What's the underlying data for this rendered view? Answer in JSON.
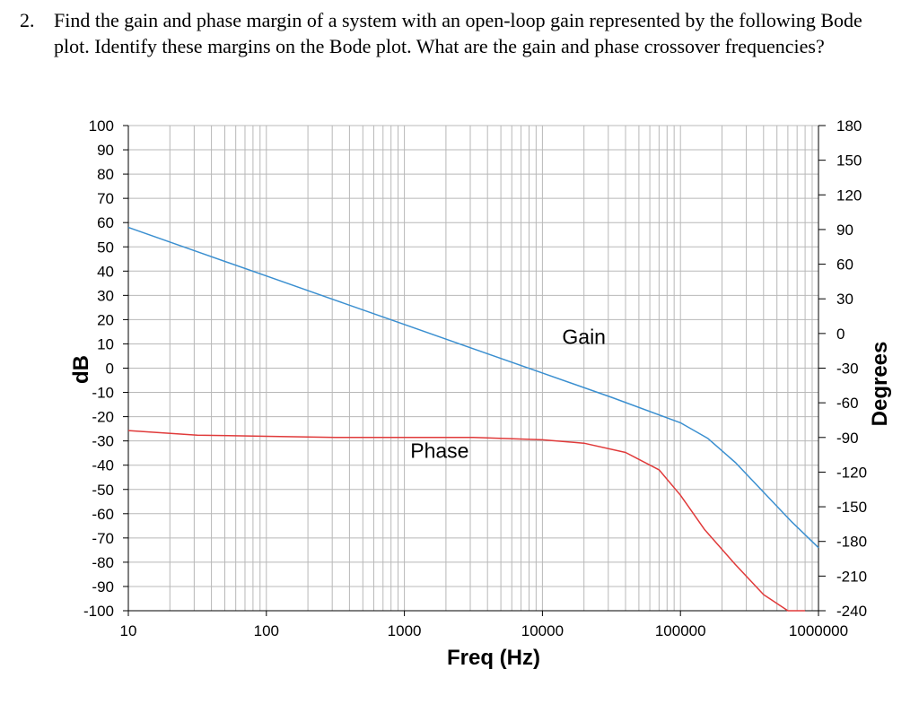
{
  "question": {
    "number": "2.",
    "text": "Find the gain and phase margin of a system with an open-loop gain represented by the following Bode plot.  Identify these margins on the Bode plot.  What are the gain and phase crossover frequencies?"
  },
  "chart_data": {
    "type": "line",
    "xscale": "log",
    "xlabel": "Freq (Hz)",
    "ylabel": "dB",
    "y2label": "Degrees",
    "xlim": [
      10,
      1000000
    ],
    "ylim": [
      -100,
      100
    ],
    "y2lim": [
      -240,
      180
    ],
    "grid": true,
    "x_ticks": [
      10,
      100,
      1000,
      10000,
      100000,
      1000000
    ],
    "x_tick_labels": [
      "10",
      "100",
      "1000",
      "10000",
      "100000",
      "1000000"
    ],
    "y_ticks": [
      100,
      90,
      80,
      70,
      60,
      50,
      40,
      30,
      20,
      10,
      0,
      -10,
      -20,
      -30,
      -40,
      -50,
      -60,
      -70,
      -80,
      -90,
      -100
    ],
    "y_tick_labels": [
      "100",
      "90",
      "80",
      "70",
      "60",
      "50",
      "40",
      "30",
      "20",
      "10",
      "0",
      "-10",
      "-20",
      "-30",
      "-40",
      "-50",
      "-60",
      "-70",
      "-80",
      "-90",
      "-100"
    ],
    "y2_ticks": [
      180,
      150,
      120,
      90,
      60,
      30,
      0,
      -30,
      -60,
      -90,
      -120,
      -150,
      -180,
      -210,
      -240
    ],
    "y2_tick_labels": [
      "180",
      "150",
      "120",
      "90",
      "60",
      "30",
      "0",
      "-30",
      "-60",
      "-90",
      "-120",
      "-150",
      "-180",
      "-210",
      "-240"
    ],
    "series": [
      {
        "name": "Gain",
        "axis": "left",
        "color": "#3a8fd0",
        "x": [
          10,
          31.6,
          100,
          316,
          1000,
          3160,
          10000,
          31600,
          100000,
          158000,
          251000,
          398000,
          631000,
          1000000
        ],
        "y": [
          58,
          48,
          38,
          28,
          18,
          8,
          -2,
          -12,
          -22.5,
          -29,
          -39,
          -51,
          -63,
          -74
        ]
      },
      {
        "name": "Phase",
        "axis": "right",
        "color": "#e03a3a",
        "x": [
          10,
          31.6,
          100,
          316,
          1000,
          3160,
          10000,
          20000,
          40000,
          70000,
          100000,
          150000,
          250000,
          400000,
          600000,
          800000
        ],
        "y": [
          -84,
          -88,
          -89,
          -90,
          -90,
          -90,
          -92,
          -95,
          -103,
          -118,
          -140,
          -170,
          -200,
          -226,
          -240,
          -246
        ]
      }
    ],
    "annotations": [
      {
        "text": "Gain",
        "x": 20000,
        "y": 10
      },
      {
        "text": "Phase",
        "x": 1800,
        "y": -37
      }
    ]
  }
}
